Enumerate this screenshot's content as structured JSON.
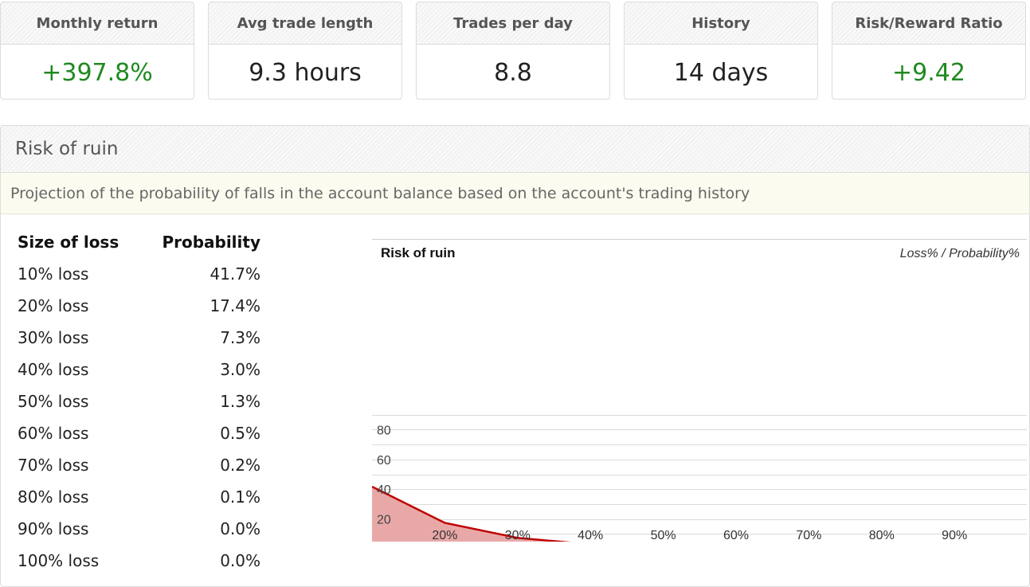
{
  "stats": [
    {
      "label": "Monthly return",
      "value": "+397.8%",
      "positive": true
    },
    {
      "label": "Avg trade length",
      "value": "9.3 hours",
      "positive": false
    },
    {
      "label": "Trades per day",
      "value": "8.8",
      "positive": false
    },
    {
      "label": "History",
      "value": "14 days",
      "positive": false
    },
    {
      "label": "Risk/Reward Ratio",
      "value": "+9.42",
      "positive": true
    }
  ],
  "panel": {
    "title": "Risk of ruin",
    "description": "Projection of the probability of falls in the account balance based on the account's trading history"
  },
  "table": {
    "headers": [
      "Size of loss",
      "Probability"
    ],
    "rows": [
      [
        "10% loss",
        "41.7%"
      ],
      [
        "20% loss",
        "17.4%"
      ],
      [
        "30% loss",
        "7.3%"
      ],
      [
        "40% loss",
        "3.0%"
      ],
      [
        "50% loss",
        "1.3%"
      ],
      [
        "60% loss",
        "0.5%"
      ],
      [
        "70% loss",
        "0.2%"
      ],
      [
        "80% loss",
        "0.1%"
      ],
      [
        "90% loss",
        "0.0%"
      ],
      [
        "100% loss",
        "0.0%"
      ]
    ]
  },
  "chart_data": {
    "type": "area",
    "title": "Risk of ruin",
    "subtitle": "Loss% / Probability%",
    "x": [
      10,
      20,
      30,
      40,
      50,
      60,
      70,
      80,
      90,
      100
    ],
    "x_tick_labels": [
      "20%",
      "30%",
      "40%",
      "50%",
      "60%",
      "70%",
      "80%",
      "90%"
    ],
    "x_ticks": [
      20,
      30,
      40,
      50,
      60,
      70,
      80,
      90
    ],
    "y_ticks": [
      20,
      40,
      60,
      80
    ],
    "values": [
      41.7,
      17.4,
      7.3,
      3.0,
      1.3,
      0.5,
      0.2,
      0.1,
      0.0,
      0.0
    ],
    "xlim": [
      10,
      100
    ],
    "ylim": [
      0,
      90
    ],
    "grid": true,
    "line_color": "#c00000",
    "fill_color": "#e9a8a8"
  }
}
